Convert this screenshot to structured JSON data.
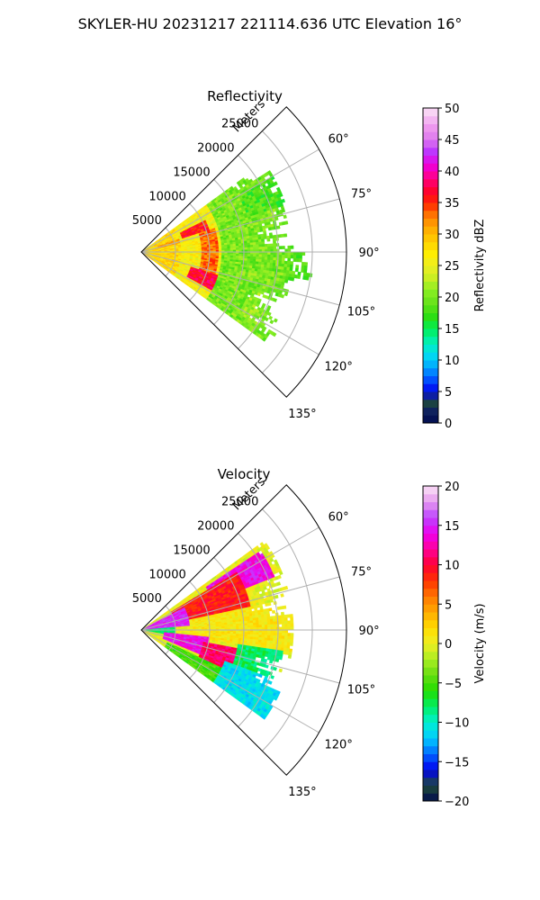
{
  "figure": {
    "suptitle": "SKYLER-HU  20231217  221114.636 UTC Elevation 16°"
  },
  "chart_data": [
    {
      "type": "heatmap",
      "subtype": "polar-sector-radar",
      "title": "Reflectivity",
      "radial_axis_label": "Meters",
      "radial_ticks": [
        5000,
        10000,
        15000,
        20000,
        25000
      ],
      "radial_tick_labels": [
        "5000",
        "10000",
        "15000",
        "20000",
        "25000"
      ],
      "rlim": [
        0,
        30000
      ],
      "angular_range_deg": [
        45,
        135
      ],
      "angular_ticks": [
        60,
        75,
        90,
        105,
        120,
        135
      ],
      "angular_tick_labels": [
        "60°",
        "75°",
        "90°",
        "105°",
        "120°",
        "135°"
      ],
      "grid": true,
      "colorbar": {
        "label": "Reflectivity dBZ",
        "range": [
          0,
          50
        ],
        "ticks": [
          0,
          5,
          10,
          15,
          20,
          25,
          30,
          35,
          40,
          45,
          50
        ],
        "tick_labels": [
          "0",
          "5",
          "10",
          "15",
          "20",
          "25",
          "30",
          "35",
          "40",
          "45",
          "50"
        ]
      },
      "features": [
        {
          "az": [
            54,
            126
          ],
          "r": [
            0,
            5500
          ],
          "value": 28
        },
        {
          "az": [
            54,
            126
          ],
          "r": [
            5500,
            11500
          ],
          "value": 26
        },
        {
          "az": [
            54,
            126
          ],
          "r": [
            11500,
            22000
          ],
          "value": 20
        },
        {
          "az": [
            60,
            72
          ],
          "r": [
            16000,
            22000
          ],
          "value": 18
        },
        {
          "az": [
            90,
            100
          ],
          "r": [
            21000,
            26500
          ],
          "value": 19
        },
        {
          "az": [
            108,
            122
          ],
          "r": [
            17000,
            23000
          ],
          "value": 21
        },
        {
          "az": [
            63,
            72
          ],
          "r": [
            6000,
            10500
          ],
          "value": 36
        },
        {
          "az": [
            72,
            108
          ],
          "r": [
            8500,
            11000
          ],
          "value": 33
        },
        {
          "az": [
            106,
            118
          ],
          "r": [
            7500,
            11500
          ],
          "value": 37
        },
        {
          "az": [
            70,
            78
          ],
          "r": [
            2500,
            5500
          ],
          "value": 31
        }
      ]
    },
    {
      "type": "heatmap",
      "subtype": "polar-sector-radar",
      "title": "Velocity",
      "radial_axis_label": "Meters",
      "radial_ticks": [
        5000,
        10000,
        15000,
        20000,
        25000
      ],
      "radial_tick_labels": [
        "5000",
        "10000",
        "15000",
        "20000",
        "25000"
      ],
      "rlim": [
        0,
        30000
      ],
      "angular_range_deg": [
        45,
        135
      ],
      "angular_ticks": [
        60,
        75,
        90,
        105,
        120,
        135
      ],
      "angular_tick_labels": [
        "60°",
        "75°",
        "90°",
        "105°",
        "120°",
        "135°"
      ],
      "grid": true,
      "colorbar": {
        "label": "Velocity (m/s)",
        "range": [
          -20,
          20
        ],
        "ticks": [
          -20,
          -15,
          -10,
          -5,
          0,
          5,
          10,
          15,
          20
        ],
        "tick_labels": [
          "−20",
          "−15",
          "−10",
          "−5",
          "0",
          "5",
          "10",
          "15",
          "20"
        ]
      },
      "features": [
        {
          "az": [
            54,
            126
          ],
          "r": [
            0,
            22000
          ],
          "value": 0
        },
        {
          "az": [
            56,
            68
          ],
          "r": [
            11000,
            21000
          ],
          "value": 14
        },
        {
          "az": [
            58,
            78
          ],
          "r": [
            5000,
            16000
          ],
          "value": 9
        },
        {
          "az": [
            78,
            98
          ],
          "r": [
            7000,
            22000
          ],
          "value": 1
        },
        {
          "az": [
            62,
            85
          ],
          "r": [
            0,
            7000
          ],
          "value": 15
        },
        {
          "az": [
            85,
            100
          ],
          "r": [
            0,
            5000
          ],
          "value": -8
        },
        {
          "az": [
            95,
            112
          ],
          "r": [
            3000,
            10000
          ],
          "value": 14
        },
        {
          "az": [
            100,
            118
          ],
          "r": [
            9000,
            15000
          ],
          "value": 11
        },
        {
          "az": [
            110,
            126
          ],
          "r": [
            13000,
            22000
          ],
          "value": -11
        },
        {
          "az": [
            115,
            126
          ],
          "r": [
            4000,
            13000
          ],
          "value": -5
        },
        {
          "az": [
            98,
            110
          ],
          "r": [
            14000,
            21000
          ],
          "value": -8
        }
      ]
    }
  ]
}
